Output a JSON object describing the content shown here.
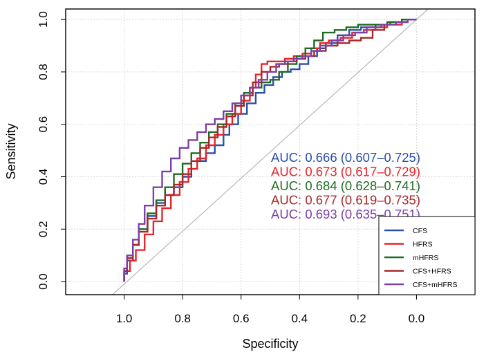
{
  "chart_data": {
    "type": "line",
    "title": "",
    "xlabel": "Specificity",
    "ylabel": "Sensitivity",
    "xlim": [
      1.2,
      -0.2
    ],
    "ylim": [
      -0.05,
      1.04
    ],
    "x_ticks": [
      "1.0",
      "0.8",
      "0.6",
      "0.4",
      "0.2",
      "0.0"
    ],
    "y_ticks": [
      "0.0",
      "0.2",
      "0.4",
      "0.6",
      "0.8",
      "1.0"
    ],
    "x_tick_values": [
      1.0,
      0.8,
      0.6,
      0.4,
      0.2,
      0.0
    ],
    "y_tick_values": [
      0.0,
      0.2,
      0.4,
      0.6,
      0.8,
      1.0
    ],
    "grid": true,
    "reference_line": {
      "from": [
        1.04,
        -0.05
      ],
      "to": [
        -0.04,
        1.04
      ],
      "color": "#b8b8b8"
    },
    "legend_position": "bottom-right",
    "series": [
      {
        "name": "CFS",
        "color": "#2a4fa8",
        "auc_label": "AUC: 0.666 (0.607–0.725)",
        "points": [
          [
            1.0,
            0.0
          ],
          [
            0.99,
            0.03
          ],
          [
            0.97,
            0.08
          ],
          [
            0.95,
            0.14
          ],
          [
            0.92,
            0.2
          ],
          [
            0.89,
            0.25
          ],
          [
            0.86,
            0.3
          ],
          [
            0.83,
            0.33
          ],
          [
            0.8,
            0.36
          ],
          [
            0.77,
            0.4
          ],
          [
            0.75,
            0.43
          ],
          [
            0.72,
            0.46
          ],
          [
            0.69,
            0.49
          ],
          [
            0.66,
            0.52
          ],
          [
            0.64,
            0.56
          ],
          [
            0.61,
            0.6
          ],
          [
            0.58,
            0.64
          ],
          [
            0.55,
            0.68
          ],
          [
            0.52,
            0.72
          ],
          [
            0.49,
            0.75
          ],
          [
            0.46,
            0.78
          ],
          [
            0.43,
            0.8
          ],
          [
            0.4,
            0.81
          ],
          [
            0.37,
            0.83
          ],
          [
            0.34,
            0.86
          ],
          [
            0.31,
            0.89
          ],
          [
            0.27,
            0.91
          ],
          [
            0.23,
            0.94
          ],
          [
            0.19,
            0.96
          ],
          [
            0.14,
            0.97
          ],
          [
            0.09,
            0.98
          ],
          [
            0.05,
            0.99
          ],
          [
            0.0,
            1.0
          ]
        ]
      },
      {
        "name": "HFRS",
        "color": "#e8232a",
        "auc_label": "AUC: 0.673 (0.617–0.729)",
        "points": [
          [
            1.0,
            0.0
          ],
          [
            0.98,
            0.04
          ],
          [
            0.96,
            0.08
          ],
          [
            0.93,
            0.12
          ],
          [
            0.9,
            0.18
          ],
          [
            0.87,
            0.23
          ],
          [
            0.84,
            0.28
          ],
          [
            0.81,
            0.33
          ],
          [
            0.78,
            0.38
          ],
          [
            0.75,
            0.43
          ],
          [
            0.72,
            0.47
          ],
          [
            0.69,
            0.52
          ],
          [
            0.66,
            0.56
          ],
          [
            0.63,
            0.6
          ],
          [
            0.6,
            0.64
          ],
          [
            0.57,
            0.69
          ],
          [
            0.55,
            0.74
          ],
          [
            0.53,
            0.79
          ],
          [
            0.51,
            0.83
          ],
          [
            0.48,
            0.84
          ],
          [
            0.45,
            0.84
          ],
          [
            0.42,
            0.85
          ],
          [
            0.39,
            0.86
          ],
          [
            0.36,
            0.87
          ],
          [
            0.33,
            0.89
          ],
          [
            0.3,
            0.91
          ],
          [
            0.26,
            0.92
          ],
          [
            0.22,
            0.93
          ],
          [
            0.18,
            0.95
          ],
          [
            0.14,
            0.96
          ],
          [
            0.1,
            0.97
          ],
          [
            0.05,
            0.98
          ],
          [
            0.0,
            1.0
          ]
        ]
      },
      {
        "name": "mHFRS",
        "color": "#1e6b23",
        "auc_label": "AUC: 0.684 (0.628–0.741)",
        "points": [
          [
            1.0,
            0.0
          ],
          [
            0.99,
            0.04
          ],
          [
            0.97,
            0.09
          ],
          [
            0.95,
            0.14
          ],
          [
            0.92,
            0.2
          ],
          [
            0.89,
            0.26
          ],
          [
            0.86,
            0.31
          ],
          [
            0.83,
            0.36
          ],
          [
            0.8,
            0.41
          ],
          [
            0.77,
            0.45
          ],
          [
            0.74,
            0.49
          ],
          [
            0.71,
            0.53
          ],
          [
            0.68,
            0.57
          ],
          [
            0.65,
            0.6
          ],
          [
            0.62,
            0.64
          ],
          [
            0.59,
            0.68
          ],
          [
            0.56,
            0.72
          ],
          [
            0.53,
            0.74
          ],
          [
            0.5,
            0.76
          ],
          [
            0.47,
            0.77
          ],
          [
            0.44,
            0.8
          ],
          [
            0.41,
            0.83
          ],
          [
            0.38,
            0.86
          ],
          [
            0.35,
            0.89
          ],
          [
            0.32,
            0.92
          ],
          [
            0.28,
            0.95
          ],
          [
            0.24,
            0.96
          ],
          [
            0.2,
            0.97
          ],
          [
            0.15,
            0.98
          ],
          [
            0.1,
            0.98
          ],
          [
            0.05,
            0.99
          ],
          [
            0.0,
            1.0
          ]
        ]
      },
      {
        "name": "CFS+HFRS",
        "color": "#a8282a",
        "auc_label": "AUC: 0.677 (0.619–0.735)",
        "points": [
          [
            1.0,
            0.0
          ],
          [
            0.99,
            0.04
          ],
          [
            0.97,
            0.09
          ],
          [
            0.95,
            0.14
          ],
          [
            0.92,
            0.19
          ],
          [
            0.89,
            0.24
          ],
          [
            0.86,
            0.29
          ],
          [
            0.83,
            0.33
          ],
          [
            0.8,
            0.37
          ],
          [
            0.77,
            0.41
          ],
          [
            0.74,
            0.46
          ],
          [
            0.71,
            0.51
          ],
          [
            0.68,
            0.55
          ],
          [
            0.65,
            0.59
          ],
          [
            0.62,
            0.63
          ],
          [
            0.59,
            0.67
          ],
          [
            0.56,
            0.71
          ],
          [
            0.53,
            0.76
          ],
          [
            0.5,
            0.8
          ],
          [
            0.47,
            0.82
          ],
          [
            0.44,
            0.83
          ],
          [
            0.41,
            0.84
          ],
          [
            0.38,
            0.85
          ],
          [
            0.35,
            0.86
          ],
          [
            0.31,
            0.88
          ],
          [
            0.27,
            0.9
          ],
          [
            0.23,
            0.91
          ],
          [
            0.19,
            0.92
          ],
          [
            0.15,
            0.93
          ],
          [
            0.11,
            0.96
          ],
          [
            0.07,
            0.98
          ],
          [
            0.03,
            0.99
          ],
          [
            0.0,
            1.0
          ]
        ]
      },
      {
        "name": "CFS+mHFRS",
        "color": "#7b3fa7",
        "auc_label": "AUC: 0.693 (0.635–0.751)",
        "points": [
          [
            1.0,
            0.0
          ],
          [
            0.99,
            0.05
          ],
          [
            0.97,
            0.1
          ],
          [
            0.95,
            0.16
          ],
          [
            0.93,
            0.22
          ],
          [
            0.9,
            0.29
          ],
          [
            0.87,
            0.36
          ],
          [
            0.84,
            0.42
          ],
          [
            0.81,
            0.47
          ],
          [
            0.78,
            0.51
          ],
          [
            0.75,
            0.54
          ],
          [
            0.72,
            0.57
          ],
          [
            0.69,
            0.6
          ],
          [
            0.66,
            0.62
          ],
          [
            0.63,
            0.65
          ],
          [
            0.6,
            0.68
          ],
          [
            0.57,
            0.71
          ],
          [
            0.54,
            0.74
          ],
          [
            0.51,
            0.77
          ],
          [
            0.48,
            0.8
          ],
          [
            0.45,
            0.83
          ],
          [
            0.42,
            0.84
          ],
          [
            0.39,
            0.85
          ],
          [
            0.36,
            0.86
          ],
          [
            0.33,
            0.88
          ],
          [
            0.29,
            0.9
          ],
          [
            0.25,
            0.92
          ],
          [
            0.21,
            0.94
          ],
          [
            0.17,
            0.95
          ],
          [
            0.12,
            0.97
          ],
          [
            0.07,
            0.98
          ],
          [
            0.03,
            0.99
          ],
          [
            0.0,
            1.0
          ]
        ]
      }
    ]
  }
}
